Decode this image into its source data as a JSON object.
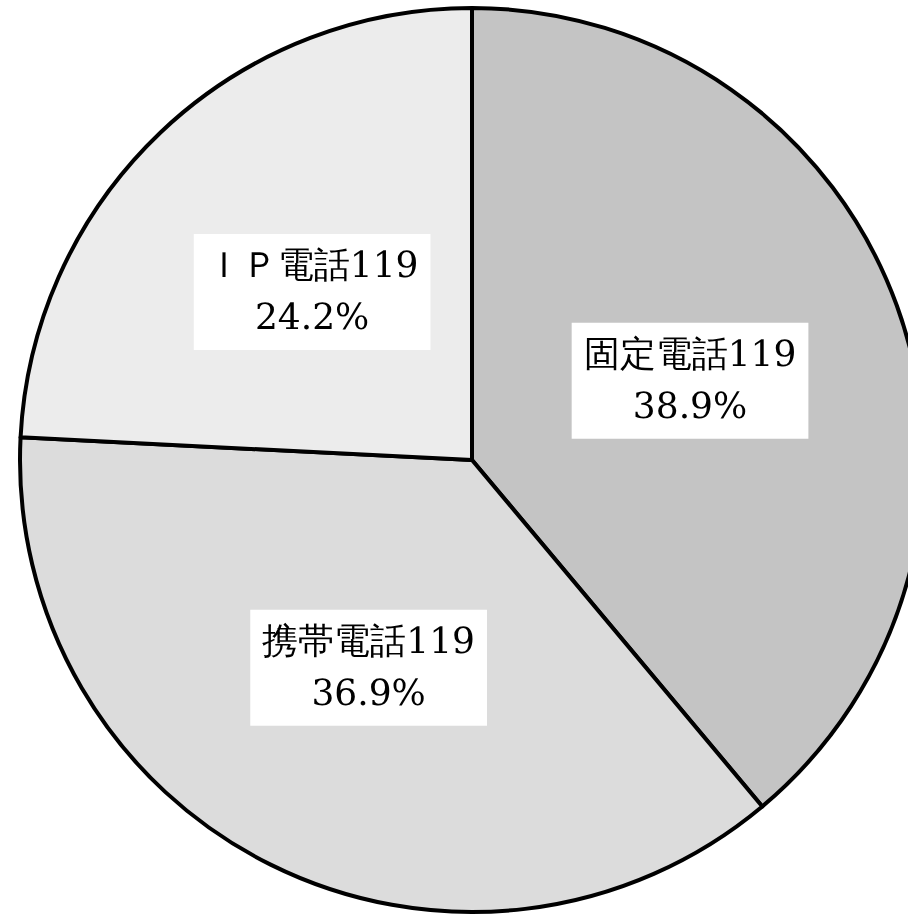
{
  "chart_data": {
    "type": "pie",
    "categories": [
      "固定電話119",
      "携帯電話119",
      "ＩＰ電話119"
    ],
    "values": [
      38.9,
      36.9,
      24.2
    ],
    "value_labels": [
      "38.9%",
      "36.9%",
      "24.2%"
    ],
    "colors": [
      "#c4c4c4",
      "#dcdcdc",
      "#ececec"
    ]
  }
}
